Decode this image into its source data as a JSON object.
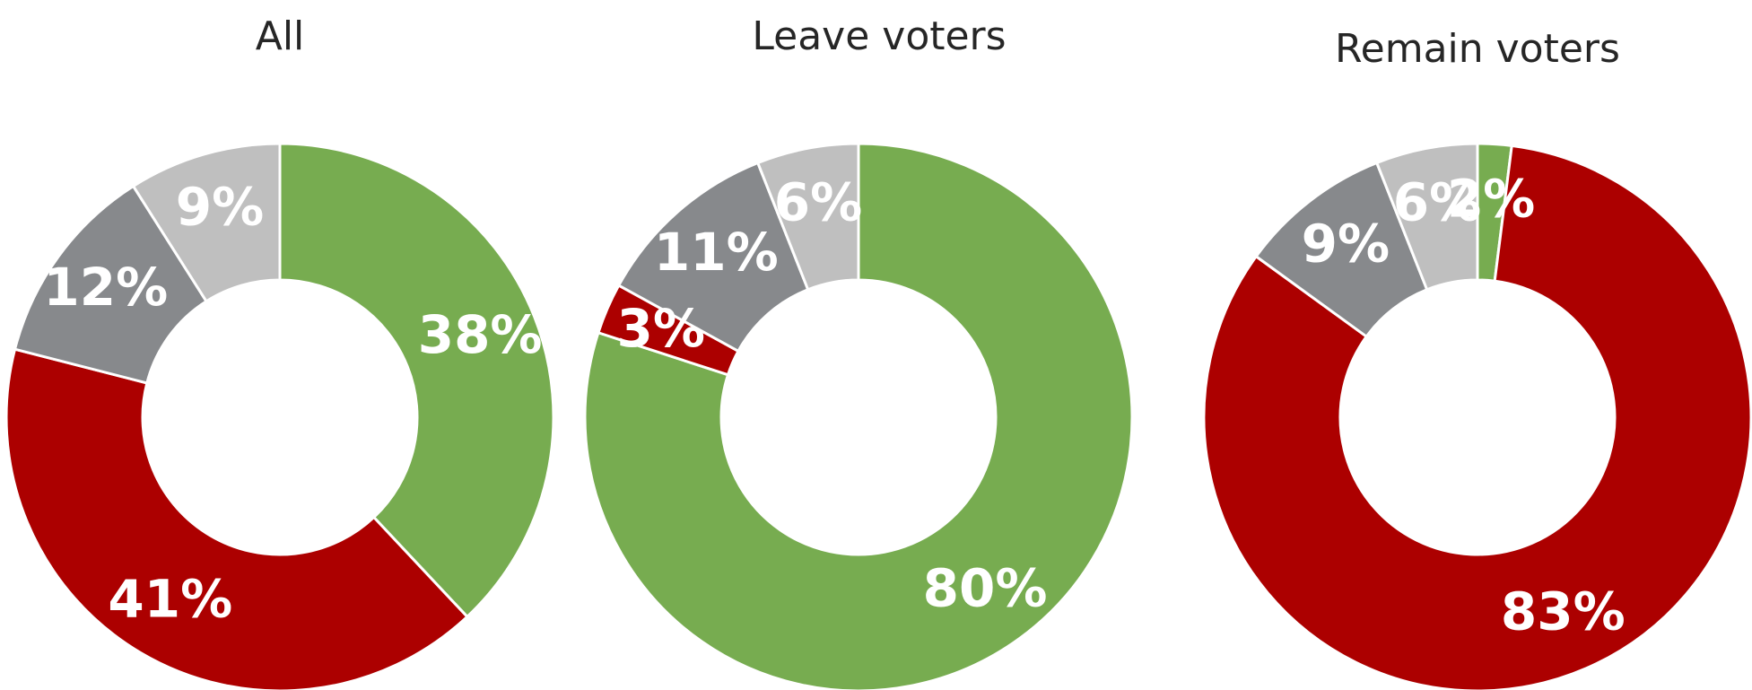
{
  "chart_data": [
    {
      "type": "pie",
      "title": "All",
      "slices": [
        {
          "label": "38%",
          "value": 38,
          "color": "#77ac50"
        },
        {
          "label": "41%",
          "value": 41,
          "color": "#ac0000"
        },
        {
          "label": "12%",
          "value": 12,
          "color": "#87898c"
        },
        {
          "label": "9%",
          "value": 9,
          "color": "#bfbfbf"
        }
      ]
    },
    {
      "type": "pie",
      "title": "Leave voters",
      "slices": [
        {
          "label": "80%",
          "value": 80,
          "color": "#77ac50"
        },
        {
          "label": "3%",
          "value": 3,
          "color": "#ac0000"
        },
        {
          "label": "11%",
          "value": 11,
          "color": "#87898c"
        },
        {
          "label": "6%",
          "value": 6,
          "color": "#bfbfbf"
        }
      ]
    },
    {
      "type": "pie",
      "title": "Remain voters",
      "slices": [
        {
          "label": "2%",
          "value": 2,
          "color": "#77ac50"
        },
        {
          "label": "83%",
          "value": 83,
          "color": "#ac0000"
        },
        {
          "label": "9%",
          "value": 9,
          "color": "#87898c"
        },
        {
          "label": "6%",
          "value": 6,
          "color": "#bfbfbf"
        }
      ]
    }
  ]
}
